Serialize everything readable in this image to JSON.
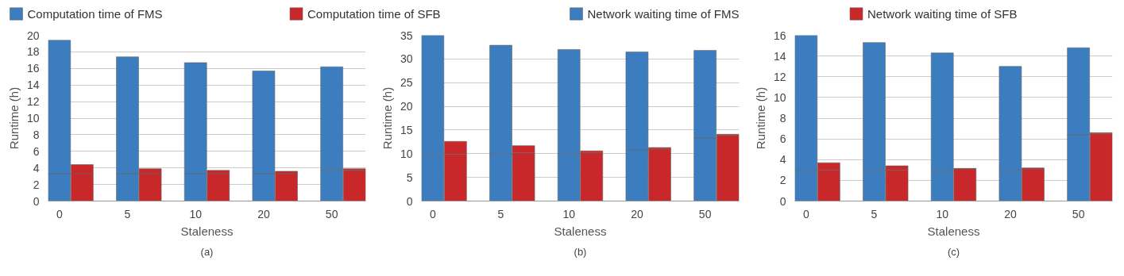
{
  "chart_data": [
    {
      "type": "bar",
      "stacked": true,
      "categories": [
        "0",
        null,
        null,
        "5",
        null,
        null,
        "10",
        null,
        null,
        "20",
        null,
        null,
        "50",
        null
      ],
      "xlabel": "Staleness",
      "ylabel": "Runtime (h)",
      "ylim": [
        0,
        20
      ],
      "yticks": [
        0,
        2,
        4,
        6,
        8,
        10,
        12,
        14,
        16,
        18,
        20
      ],
      "grid": "y",
      "legend": "top",
      "annotations": [
        "(a)"
      ],
      "series": [
        {
          "name": "Computation time of FMS",
          "color": "#3b7dbf",
          "values": [
            3.3,
            null,
            null,
            3.3,
            null,
            null,
            3.3,
            null,
            null,
            3.3,
            null,
            null,
            3.8,
            null
          ]
        },
        {
          "name": "Computation time of SFB",
          "color": "#c8282a",
          "values": [
            null,
            3.3,
            null,
            null,
            3.3,
            null,
            null,
            3.3,
            null,
            null,
            3.3,
            null,
            null,
            3.7
          ]
        },
        {
          "name": "Network waiting time of FMS",
          "color": "#3b7dbf",
          "values": [
            16.1,
            null,
            null,
            14.1,
            null,
            null,
            13.4,
            null,
            null,
            12.4,
            null,
            null,
            12.4,
            null
          ]
        },
        {
          "name": "Network waiting time of SFB",
          "color": "#c8282a",
          "values": [
            null,
            1.1,
            null,
            null,
            0.6,
            null,
            null,
            0.4,
            null,
            null,
            0.3,
            null,
            null,
            0.2
          ]
        }
      ]
    },
    {
      "type": "bar",
      "stacked": true,
      "categories": [
        "0",
        null,
        null,
        "5",
        null,
        null,
        "10",
        null,
        null,
        "20",
        null,
        null,
        "50",
        null
      ],
      "xlabel": "Staleness",
      "ylabel": "Runtime (h)",
      "ylim": [
        0,
        35
      ],
      "yticks": [
        0,
        5,
        10,
        15,
        20,
        25,
        30,
        35
      ],
      "grid": "y",
      "annotations": [
        "(b)"
      ],
      "series": [
        {
          "color": "#3b7dbf",
          "values": [
            9.7,
            null,
            null,
            9.9,
            null,
            null,
            9.9,
            null,
            null,
            10.8,
            null,
            null,
            13.3,
            null
          ]
        },
        {
          "color": "#c8282a",
          "values": [
            null,
            9.9,
            null,
            null,
            10.2,
            null,
            null,
            10.2,
            null,
            null,
            11.0,
            null,
            null,
            13.9
          ]
        },
        {
          "color": "#3b7dbf",
          "values": [
            25.3,
            null,
            null,
            23.0,
            null,
            null,
            22.1,
            null,
            null,
            20.7,
            null,
            null,
            18.5,
            null
          ]
        },
        {
          "color": "#c8282a",
          "values": [
            null,
            2.7,
            null,
            null,
            1.5,
            null,
            null,
            0.4,
            null,
            null,
            0.3,
            null,
            null,
            0.2
          ]
        }
      ]
    },
    {
      "type": "bar",
      "stacked": true,
      "categories": [
        "0",
        null,
        null,
        "5",
        null,
        null,
        "10",
        null,
        null,
        "20",
        null,
        null,
        "50",
        null
      ],
      "xlabel": "Staleness",
      "ylabel": "Runtime (h)",
      "ylim": [
        0,
        16
      ],
      "yticks": [
        0,
        2,
        4,
        6,
        8,
        10,
        12,
        14,
        16
      ],
      "grid": "y",
      "annotations": [
        "(c)"
      ],
      "series": [
        {
          "color": "#3b7dbf",
          "values": [
            3.0,
            null,
            null,
            3.0,
            null,
            null,
            3.0,
            null,
            null,
            3.0,
            null,
            null,
            6.4,
            null
          ]
        },
        {
          "color": "#c8282a",
          "values": [
            null,
            3.0,
            null,
            null,
            3.0,
            null,
            null,
            3.1,
            null,
            null,
            3.1,
            null,
            null,
            6.5
          ]
        },
        {
          "color": "#3b7dbf",
          "values": [
            13.0,
            null,
            null,
            12.3,
            null,
            null,
            11.3,
            null,
            null,
            10.0,
            null,
            null,
            8.4,
            null
          ]
        },
        {
          "color": "#c8282a",
          "values": [
            null,
            0.7,
            null,
            null,
            0.4,
            null,
            null,
            0.05,
            null,
            null,
            0.1,
            null,
            null,
            0.1
          ]
        }
      ]
    }
  ]
}
